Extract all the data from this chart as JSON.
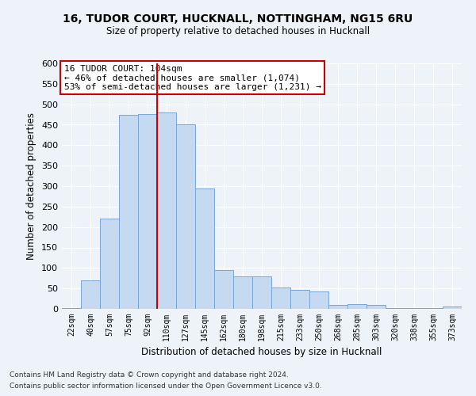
{
  "title1": "16, TUDOR COURT, HUCKNALL, NOTTINGHAM, NG15 6RU",
  "title2": "Size of property relative to detached houses in Hucknall",
  "xlabel": "Distribution of detached houses by size in Hucknall",
  "ylabel": "Number of detached properties",
  "footnote1": "Contains HM Land Registry data © Crown copyright and database right 2024.",
  "footnote2": "Contains public sector information licensed under the Open Government Licence v3.0.",
  "categories": [
    "22sqm",
    "40sqm",
    "57sqm",
    "75sqm",
    "92sqm",
    "110sqm",
    "127sqm",
    "145sqm",
    "162sqm",
    "180sqm",
    "198sqm",
    "215sqm",
    "233sqm",
    "250sqm",
    "268sqm",
    "285sqm",
    "303sqm",
    "320sqm",
    "338sqm",
    "355sqm",
    "373sqm"
  ],
  "values": [
    2,
    70,
    220,
    475,
    477,
    480,
    450,
    295,
    95,
    80,
    80,
    53,
    46,
    42,
    10,
    12,
    10,
    2,
    1,
    1,
    5
  ],
  "bar_color": "#c5d9f0",
  "bar_edge_color": "#7aa6d4",
  "bg_color": "#eef3fa",
  "grid_color": "#ffffff",
  "annotation_text": "16 TUDOR COURT: 104sqm\n← 46% of detached houses are smaller (1,074)\n53% of semi-detached houses are larger (1,231) →",
  "annotation_box_color": "#ffffff",
  "annotation_box_edge_color": "#cc0000",
  "vline_color": "#cc0000",
  "vline_x_index": 4.5,
  "ylim": [
    0,
    600
  ],
  "yticks": [
    0,
    50,
    100,
    150,
    200,
    250,
    300,
    350,
    400,
    450,
    500,
    550,
    600
  ]
}
